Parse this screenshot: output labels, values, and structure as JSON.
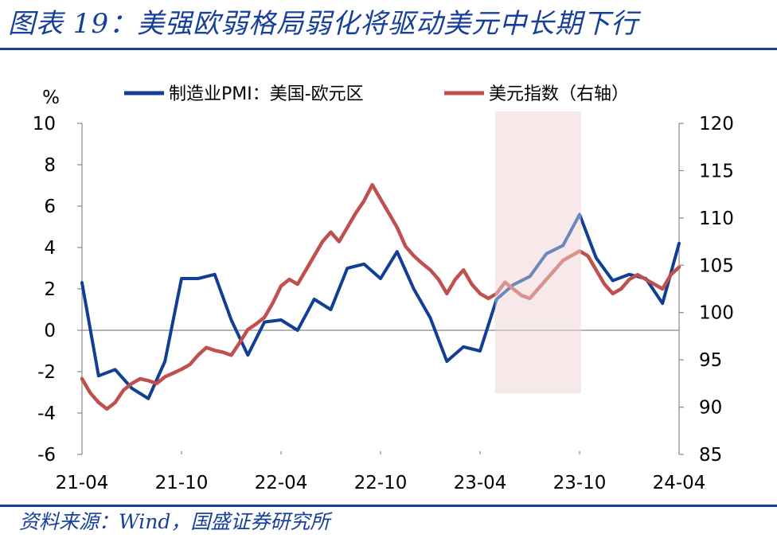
{
  "header": {
    "title": "图表 19：美强欧弱格局弱化将驱动美元中长期下行"
  },
  "footer": {
    "source": "资料来源：Wind，国盛证券研究所"
  },
  "colors": {
    "brand": "#16409a",
    "pmi": "#123f95",
    "dxy": "#c0504d",
    "shade": "#f3dcdc"
  },
  "chart_data": {
    "type": "line",
    "title": "图表 19：美强欧弱格局弱化将驱动美元中长期下行",
    "ylabel": "%",
    "ylim": [
      -6,
      10
    ],
    "y_ticks": [
      "10",
      "8",
      "6",
      "4",
      "2",
      "0",
      "-2",
      "-4",
      "-6"
    ],
    "y2lim": [
      85,
      120
    ],
    "y2_ticks": [
      "120",
      "115",
      "110",
      "105",
      "100",
      "95",
      "90",
      "85"
    ],
    "x_ticks": [
      "21-04",
      "21-10",
      "22-04",
      "22-10",
      "23-04",
      "23-10",
      "24-04"
    ],
    "x_range_months": [
      0,
      36
    ],
    "legend": [
      "制造业PMI：美国-欧元区",
      "美元指数（右轴）"
    ],
    "shaded_region_months": [
      25,
      30
    ],
    "series": [
      {
        "name": "制造业PMI：美国-欧元区",
        "axis": "left",
        "color": "#123f95",
        "x_months": [
          0,
          1,
          2,
          3,
          4,
          5,
          6,
          7,
          8,
          9,
          10,
          11,
          12,
          13,
          14,
          15,
          16,
          17,
          18,
          19,
          20,
          21,
          22,
          23,
          24,
          25,
          26,
          27,
          28,
          29,
          30,
          31,
          32,
          33,
          34,
          35,
          36
        ],
        "values": [
          2.3,
          -2.2,
          -1.9,
          -2.8,
          -3.3,
          -1.5,
          2.5,
          2.5,
          2.7,
          0.5,
          -1.2,
          0.4,
          0.5,
          0.0,
          1.5,
          1.0,
          3.0,
          3.2,
          2.5,
          3.8,
          2.0,
          0.6,
          -1.5,
          -0.8,
          -1.0,
          1.5,
          2.2,
          2.6,
          3.7,
          4.1,
          5.6,
          3.5,
          2.4,
          2.7,
          2.5,
          1.3,
          4.2
        ]
      },
      {
        "name": "美元指数（右轴）",
        "axis": "right",
        "color": "#c0504d",
        "x_months": [
          0,
          0.5,
          1,
          1.5,
          2,
          2.5,
          3,
          3.5,
          4,
          4.5,
          5,
          5.5,
          6,
          6.5,
          7,
          7.5,
          8,
          8.5,
          9,
          9.5,
          10,
          10.5,
          11,
          11.5,
          12,
          12.5,
          13,
          13.5,
          14,
          14.5,
          15,
          15.5,
          16,
          16.5,
          17,
          17.5,
          18,
          18.5,
          19,
          19.5,
          20,
          20.5,
          21,
          21.5,
          22,
          22.5,
          23,
          23.5,
          24,
          24.5,
          25,
          25.5,
          26,
          26.5,
          27,
          27.5,
          28,
          28.5,
          29,
          29.5,
          30,
          30.5,
          31,
          31.5,
          32,
          32.5,
          33,
          33.5,
          34,
          34.5,
          35,
          35.5,
          36
        ],
        "values": [
          93.0,
          91.5,
          90.5,
          89.8,
          90.5,
          91.8,
          92.5,
          93.0,
          92.8,
          92.5,
          93.2,
          93.6,
          94.0,
          94.5,
          95.5,
          96.3,
          96.0,
          95.8,
          95.5,
          96.8,
          98.2,
          98.8,
          99.5,
          101.0,
          102.8,
          103.5,
          103.0,
          104.5,
          106.0,
          107.5,
          108.5,
          107.5,
          109.0,
          110.5,
          111.8,
          113.5,
          112.0,
          110.5,
          109.0,
          107.0,
          106.0,
          105.2,
          104.5,
          103.5,
          102.0,
          103.5,
          104.5,
          103.0,
          102.0,
          101.5,
          102.0,
          103.2,
          102.5,
          101.8,
          101.5,
          102.5,
          103.5,
          104.5,
          105.5,
          106.0,
          106.5,
          106.0,
          104.5,
          103.0,
          102.0,
          102.5,
          103.5,
          104.0,
          103.5,
          103.0,
          102.5,
          104.0,
          104.8
        ]
      }
    ]
  }
}
